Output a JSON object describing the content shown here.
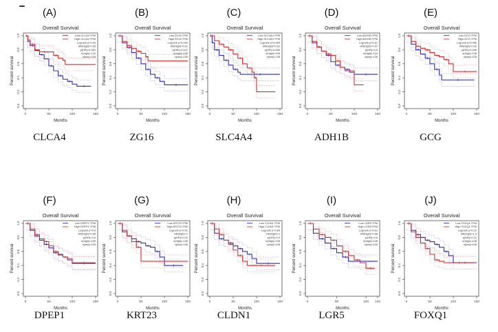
{
  "figure": {
    "panels_row1": [
      "A",
      "B",
      "C",
      "D",
      "E"
    ],
    "panels_row2": [
      "F",
      "G",
      "H",
      "I",
      "J"
    ]
  },
  "colors": {
    "low": "#2a2ad0",
    "high": "#e02a2a",
    "low_ci": "#a9a9e8",
    "high_ci": "#f0a8a8"
  },
  "chart_data": [
    {
      "type": "line",
      "panel": "(A)",
      "gene": "CLCA4",
      "title": "Overall Survival",
      "xlabel": "Months",
      "ylabel": "Percent survival",
      "xlim": [
        0,
        150
      ],
      "ylim": [
        0,
        1
      ],
      "xticks": [
        "0",
        "50",
        "100",
        "150"
      ],
      "yticks": [
        "0.0",
        "0.2",
        "0.4",
        "0.6",
        "0.8",
        "1.0"
      ],
      "legend": [
        "Low CLCA4 TPM",
        "High CLCA4 TPM",
        "Logrank p=0.06",
        "HR(high)=0.55",
        "p(HR)=0.063",
        "n(high)=134",
        "n(low)=135"
      ],
      "series": [
        {
          "name": "Low",
          "x": [
            0,
            5,
            10,
            20,
            30,
            40,
            50,
            60,
            70,
            80,
            90,
            100,
            110,
            140
          ],
          "y": [
            1.0,
            0.92,
            0.86,
            0.79,
            0.73,
            0.67,
            0.57,
            0.5,
            0.43,
            0.38,
            0.35,
            0.31,
            0.28,
            0.28
          ]
        },
        {
          "name": "High",
          "x": [
            0,
            5,
            10,
            20,
            30,
            50,
            60,
            70,
            80,
            85,
            150
          ],
          "y": [
            1.0,
            0.94,
            0.88,
            0.8,
            0.77,
            0.77,
            0.72,
            0.68,
            0.65,
            0.59,
            0.59
          ]
        }
      ]
    },
    {
      "type": "line",
      "panel": "(B)",
      "gene": "ZG16",
      "title": "Overall Survival",
      "xlabel": "Months",
      "ylabel": "Percent survival",
      "xlim": [
        0,
        150
      ],
      "ylim": [
        0,
        1
      ],
      "xticks": [
        "0",
        "50",
        "100",
        "150"
      ],
      "yticks": [
        "0.0",
        "0.2",
        "0.4",
        "0.6",
        "0.8",
        "1.0"
      ],
      "legend": [
        "Low ZG16 TPM",
        "High ZG16 TPM",
        "Logrank p=0.049",
        "HR(high)=0.61",
        "p(HR)=0.047",
        "n(high)=135",
        "n(low)=135"
      ],
      "series": [
        {
          "name": "Low",
          "x": [
            0,
            10,
            20,
            30,
            40,
            50,
            60,
            70,
            80,
            90,
            100,
            150
          ],
          "y": [
            1.0,
            0.9,
            0.83,
            0.76,
            0.68,
            0.6,
            0.52,
            0.45,
            0.4,
            0.35,
            0.3,
            0.3
          ]
        },
        {
          "name": "High",
          "x": [
            0,
            10,
            20,
            30,
            40,
            50,
            60,
            65,
            150
          ],
          "y": [
            1.0,
            0.92,
            0.86,
            0.82,
            0.78,
            0.75,
            0.7,
            0.64,
            0.64
          ]
        }
      ]
    },
    {
      "type": "line",
      "panel": "(C)",
      "gene": "SLC4A4",
      "title": "Overall Survival",
      "xlabel": "Months",
      "ylabel": "Percent survival",
      "xlim": [
        0,
        150
      ],
      "ylim": [
        0,
        1
      ],
      "xticks": [
        "0",
        "50",
        "100",
        "150"
      ],
      "yticks": [
        "0.0",
        "0.2",
        "0.4",
        "0.6",
        "0.8",
        "1.0"
      ],
      "legend": [
        "Low SLC4A4 TPM",
        "High SLC4A4 TPM",
        "Logrank p=0.054",
        "HR(high)=0.62",
        "p(HR)=0.055",
        "n(high)=135",
        "n(low)=135"
      ],
      "series": [
        {
          "name": "Low",
          "x": [
            0,
            5,
            10,
            20,
            30,
            40,
            50,
            60,
            65,
            150
          ],
          "y": [
            1.0,
            0.9,
            0.8,
            0.72,
            0.65,
            0.58,
            0.52,
            0.48,
            0.45,
            0.45
          ]
        },
        {
          "name": "High",
          "x": [
            0,
            10,
            20,
            30,
            40,
            50,
            60,
            70,
            80,
            90,
            95,
            100,
            140
          ],
          "y": [
            1.0,
            0.93,
            0.88,
            0.84,
            0.8,
            0.74,
            0.68,
            0.6,
            0.54,
            0.48,
            0.4,
            0.2,
            0.2
          ]
        }
      ]
    },
    {
      "type": "line",
      "panel": "(D)",
      "gene": "ADH1B",
      "title": "Overall Survival",
      "xlabel": "Months",
      "ylabel": "Percent survival",
      "xlim": [
        0,
        150
      ],
      "ylim": [
        0,
        1
      ],
      "xticks": [
        "0",
        "50",
        "100",
        "150"
      ],
      "yticks": [
        "0.0",
        "0.2",
        "0.4",
        "0.6",
        "0.8",
        "1.0"
      ],
      "legend": [
        "Low ADH1B TPM",
        "High ADH1B TPM",
        "Logrank p=0.81",
        "HR(high)=0.97",
        "p(HR)=0.9",
        "n(high)=134",
        "n(low)=135"
      ],
      "series": [
        {
          "name": "Low",
          "x": [
            0,
            10,
            20,
            30,
            40,
            50,
            60,
            70,
            80,
            90,
            100,
            150
          ],
          "y": [
            1.0,
            0.9,
            0.84,
            0.78,
            0.72,
            0.63,
            0.58,
            0.55,
            0.52,
            0.48,
            0.45,
            0.45
          ]
        },
        {
          "name": "High",
          "x": [
            0,
            10,
            20,
            30,
            40,
            50,
            60,
            70,
            80,
            100,
            120
          ],
          "y": [
            1.0,
            0.92,
            0.84,
            0.78,
            0.74,
            0.72,
            0.64,
            0.55,
            0.5,
            0.3,
            0.3
          ]
        }
      ]
    },
    {
      "type": "line",
      "panel": "(E)",
      "gene": "GCG",
      "title": "Overall Survival",
      "xlabel": "Months",
      "ylabel": "Percent survival",
      "xlim": [
        0,
        150
      ],
      "ylim": [
        0,
        1
      ],
      "xticks": [
        "0",
        "50",
        "100",
        "150"
      ],
      "yticks": [
        "0.0",
        "0.2",
        "0.4",
        "0.6",
        "0.8",
        "1.0"
      ],
      "legend": [
        "Low GCG TPM",
        "High GCG TPM",
        "Logrank p=0.056",
        "HR(high)=0.62",
        "p(HR)=0.059",
        "n(high)=135",
        "n(low)=135"
      ],
      "series": [
        {
          "name": "Low",
          "x": [
            0,
            10,
            20,
            30,
            40,
            50,
            60,
            70,
            75,
            145
          ],
          "y": [
            1.0,
            0.88,
            0.8,
            0.74,
            0.68,
            0.6,
            0.52,
            0.44,
            0.37,
            0.37
          ]
        },
        {
          "name": "High",
          "x": [
            0,
            10,
            20,
            30,
            40,
            50,
            60,
            70,
            80,
            90,
            100,
            150
          ],
          "y": [
            1.0,
            0.92,
            0.85,
            0.82,
            0.8,
            0.76,
            0.72,
            0.7,
            0.66,
            0.6,
            0.49,
            0.49
          ]
        }
      ]
    },
    {
      "type": "line",
      "panel": "(F)",
      "gene": "DPEP1",
      "title": "Overall Survival",
      "xlabel": "Months",
      "ylabel": "Percent survival",
      "xlim": [
        0,
        150
      ],
      "ylim": [
        0,
        1
      ],
      "xticks": [
        "0",
        "50",
        "100",
        "150"
      ],
      "yticks": [
        "0.0",
        "0.2",
        "0.4",
        "0.6",
        "0.8",
        "1.0"
      ],
      "legend": [
        "Low DPEP1 TPM",
        "High DPEP1 TPM",
        "Logrank p=0.6",
        "HR(high)=0.88",
        "p(HR)=0.6",
        "n(high)=135",
        "n(low)=135"
      ],
      "series": [
        {
          "name": "Low",
          "x": [
            0,
            10,
            20,
            30,
            40,
            50,
            60,
            70,
            80,
            90,
            100,
            150
          ],
          "y": [
            1.0,
            0.9,
            0.82,
            0.76,
            0.7,
            0.65,
            0.58,
            0.55,
            0.52,
            0.48,
            0.43,
            0.43
          ]
        },
        {
          "name": "High",
          "x": [
            0,
            10,
            20,
            30,
            40,
            50,
            60,
            70,
            80,
            90,
            100,
            150
          ],
          "y": [
            1.0,
            0.92,
            0.84,
            0.78,
            0.74,
            0.68,
            0.6,
            0.56,
            0.52,
            0.5,
            0.44,
            0.44
          ]
        }
      ]
    },
    {
      "type": "line",
      "panel": "(G)",
      "gene": "KRT23",
      "title": "Overall Survival",
      "xlabel": "Months",
      "ylabel": "Percent survival",
      "xlim": [
        0,
        150
      ],
      "ylim": [
        0,
        1
      ],
      "xticks": [
        "0",
        "50",
        "100",
        "150"
      ],
      "yticks": [
        "0.0",
        "0.2",
        "0.4",
        "0.6",
        "0.8",
        "1.0"
      ],
      "legend": [
        "Low KRT23 TPM",
        "High KRT23 TPM",
        "Logrank p=0.91",
        "HR(high)=1",
        "p(HR)=0.91",
        "n(high)=135",
        "n(low)=135"
      ],
      "series": [
        {
          "name": "Low",
          "x": [
            0,
            10,
            20,
            30,
            40,
            50,
            60,
            70,
            80,
            90,
            100,
            140
          ],
          "y": [
            1.0,
            0.88,
            0.82,
            0.78,
            0.74,
            0.72,
            0.68,
            0.66,
            0.6,
            0.52,
            0.4,
            0.4
          ]
        },
        {
          "name": "High",
          "x": [
            0,
            10,
            20,
            30,
            40,
            50,
            150
          ],
          "y": [
            1.0,
            0.9,
            0.82,
            0.74,
            0.66,
            0.46,
            0.46
          ]
        }
      ]
    },
    {
      "type": "line",
      "panel": "(H)",
      "gene": "CLDN1",
      "title": "Overall Survival",
      "xlabel": "Months",
      "ylabel": "Percent survival",
      "xlim": [
        0,
        150
      ],
      "ylim": [
        0,
        1
      ],
      "xticks": [
        "0",
        "50",
        "100",
        "150"
      ],
      "yticks": [
        "0.0",
        "0.2",
        "0.4",
        "0.6",
        "0.8",
        "1.0"
      ],
      "legend": [
        "Low CLDN1 TPM",
        "High CLDN1 TPM",
        "Logrank p=0.89",
        "HR(high)=1",
        "p(HR)=0.9",
        "n(high)=135",
        "n(low)=135"
      ],
      "series": [
        {
          "name": "Low",
          "x": [
            0,
            10,
            20,
            30,
            40,
            50,
            60,
            70,
            80,
            90,
            100,
            150
          ],
          "y": [
            1.0,
            0.86,
            0.78,
            0.76,
            0.72,
            0.68,
            0.64,
            0.6,
            0.56,
            0.5,
            0.43,
            0.43
          ]
        },
        {
          "name": "High",
          "x": [
            0,
            10,
            20,
            30,
            40,
            50,
            60,
            70,
            80,
            140
          ],
          "y": [
            1.0,
            0.92,
            0.84,
            0.76,
            0.7,
            0.62,
            0.54,
            0.46,
            0.4,
            0.4
          ]
        }
      ]
    },
    {
      "type": "line",
      "panel": "(I)",
      "gene": "LGR5",
      "title": "Overall Survival",
      "xlabel": "Months",
      "ylabel": "Percent survival",
      "xlim": [
        0,
        120
      ],
      "ylim": [
        0,
        1
      ],
      "xticks": [
        "0",
        "50",
        "100",
        "120"
      ],
      "yticks": [
        "0.0",
        "0.2",
        "0.4",
        "0.6",
        "0.8",
        "1.0"
      ],
      "legend": [
        "Low LGR5 TPM",
        "High LGR5 TPM",
        "Logrank p=0.61",
        "HR(high)=0.88",
        "p(HR)=0.6",
        "n(high)=135",
        "n(low)=135"
      ],
      "series": [
        {
          "name": "Low",
          "x": [
            0,
            10,
            20,
            30,
            40,
            50,
            60,
            70,
            120
          ],
          "y": [
            1.0,
            0.86,
            0.78,
            0.72,
            0.64,
            0.58,
            0.52,
            0.46,
            0.46
          ]
        },
        {
          "name": "High",
          "x": [
            0,
            10,
            20,
            30,
            40,
            50,
            60,
            70,
            80,
            90,
            100,
            115
          ],
          "y": [
            1.0,
            0.92,
            0.84,
            0.8,
            0.76,
            0.68,
            0.6,
            0.54,
            0.48,
            0.44,
            0.36,
            0.36
          ]
        }
      ]
    },
    {
      "type": "line",
      "panel": "(J)",
      "gene": "FOXQ1",
      "title": "Overall Survival",
      "xlabel": "Months",
      "ylabel": "Percent survival",
      "xlim": [
        0,
        150
      ],
      "ylim": [
        0,
        1
      ],
      "xticks": [
        "0",
        "50",
        "100",
        "150"
      ],
      "yticks": [
        "0.0",
        "0.2",
        "0.4",
        "0.6",
        "0.8",
        "1.0"
      ],
      "legend": [
        "Low FOXQ1 TPM",
        "High FOXQ1 TPM",
        "Logrank p=0.22",
        "HR(high)=1.3",
        "p(HR)=0.22",
        "n(high)=135",
        "n(low)=135"
      ],
      "series": [
        {
          "name": "Low",
          "x": [
            0,
            10,
            20,
            30,
            40,
            50,
            60,
            70,
            80,
            90,
            100,
            150
          ],
          "y": [
            1.0,
            0.9,
            0.84,
            0.8,
            0.76,
            0.74,
            0.7,
            0.66,
            0.6,
            0.54,
            0.44,
            0.44
          ]
        },
        {
          "name": "High",
          "x": [
            0,
            10,
            20,
            30,
            40,
            50,
            60,
            70,
            80,
            145
          ],
          "y": [
            1.0,
            0.88,
            0.8,
            0.72,
            0.64,
            0.56,
            0.48,
            0.46,
            0.44,
            0.44
          ]
        }
      ]
    }
  ]
}
